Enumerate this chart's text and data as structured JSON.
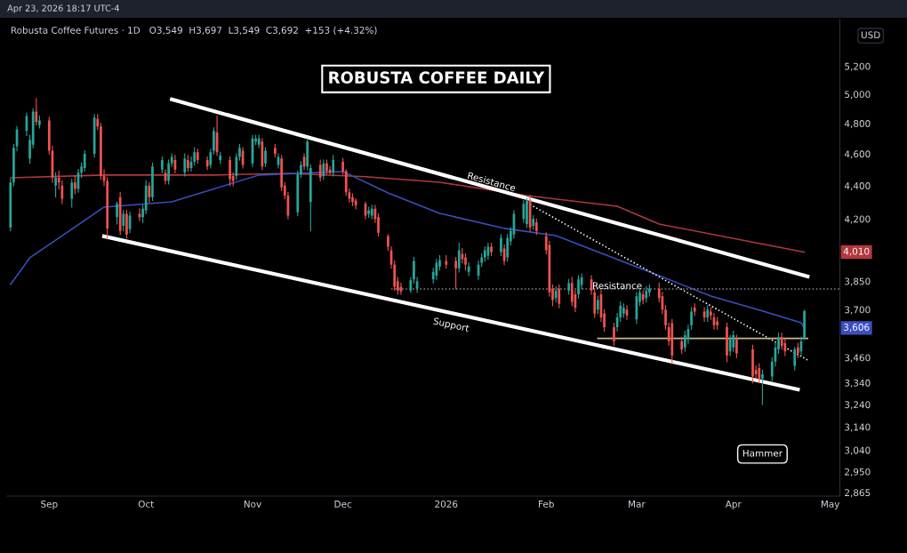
{
  "chart_data": {
    "type": "candlestick",
    "title": "ROBUSTA COFFEE DAILY",
    "subtitle": "Robusta Coffee Futures · 1D   O3,549  H3,697  L3,549  C3,692  +153 (+4.32%)",
    "ylabel": "USD",
    "x": [
      "2025-08-20",
      "2025-08-21",
      "2025-08-22",
      "2025-08-25",
      "2025-08-26",
      "2025-08-27",
      "2025-08-28",
      "2025-08-29",
      "2025-09-01",
      "2025-09-02",
      "2025-09-03",
      "2025-09-04",
      "2025-09-05",
      "2025-09-08",
      "2025-09-09",
      "2025-09-10",
      "2025-09-11",
      "2025-09-12",
      "2025-09-15",
      "2025-09-16",
      "2025-09-17",
      "2025-09-18",
      "2025-09-19",
      "2025-09-22",
      "2025-09-23",
      "2025-09-24",
      "2025-09-25",
      "2025-09-26",
      "2025-09-29",
      "2025-09-30",
      "2025-10-01",
      "2025-10-02",
      "2025-10-03",
      "2025-10-06",
      "2025-10-07",
      "2025-10-08",
      "2025-10-09",
      "2025-10-10",
      "2025-10-13",
      "2025-10-14",
      "2025-10-15",
      "2025-10-16",
      "2025-10-17",
      "2025-10-20",
      "2025-10-21",
      "2025-10-22",
      "2025-10-23",
      "2025-10-24",
      "2025-10-27",
      "2025-10-28",
      "2025-10-29",
      "2025-10-30",
      "2025-10-31",
      "2025-11-03",
      "2025-11-04",
      "2025-11-05",
      "2025-11-06",
      "2025-11-07",
      "2025-11-10",
      "2025-11-11",
      "2025-11-12",
      "2025-11-13",
      "2025-11-14",
      "2025-11-17",
      "2025-11-18",
      "2025-11-19",
      "2025-11-20",
      "2025-11-21",
      "2025-11-24",
      "2025-11-25",
      "2025-11-26",
      "2025-11-27",
      "2025-11-28",
      "2025-12-01",
      "2025-12-02",
      "2025-12-03",
      "2025-12-04",
      "2025-12-05",
      "2025-12-08",
      "2025-12-09",
      "2025-12-10",
      "2025-12-11",
      "2025-12-12",
      "2025-12-15",
      "2025-12-16",
      "2025-12-17",
      "2025-12-18",
      "2025-12-19",
      "2025-12-22",
      "2025-12-23",
      "2025-12-24",
      "2025-12-29",
      "2025-12-30",
      "2025-12-31",
      "2026-01-02",
      "2026-01-05",
      "2026-01-06",
      "2026-01-07",
      "2026-01-08",
      "2026-01-09",
      "2026-01-12",
      "2026-01-13",
      "2026-01-14",
      "2026-01-15",
      "2026-01-16",
      "2026-01-19",
      "2026-01-20",
      "2026-01-21",
      "2026-01-22",
      "2026-01-23",
      "2026-01-26",
      "2026-01-27",
      "2026-01-28",
      "2026-01-29",
      "2026-01-30",
      "2026-02-02",
      "2026-02-03",
      "2026-02-04",
      "2026-02-05",
      "2026-02-06",
      "2026-02-09",
      "2026-02-10",
      "2026-02-11",
      "2026-02-12",
      "2026-02-13",
      "2026-02-16",
      "2026-02-17",
      "2026-02-18",
      "2026-02-19",
      "2026-02-20",
      "2026-02-23",
      "2026-02-24",
      "2026-02-25",
      "2026-02-26",
      "2026-02-27",
      "2026-03-02",
      "2026-03-03",
      "2026-03-04",
      "2026-03-05",
      "2026-03-06",
      "2026-03-09",
      "2026-03-10",
      "2026-03-11",
      "2026-03-12",
      "2026-03-13",
      "2026-03-16",
      "2026-03-17",
      "2026-03-18",
      "2026-03-19",
      "2026-03-20",
      "2026-03-23",
      "2026-03-24",
      "2026-03-25",
      "2026-03-26",
      "2026-03-27",
      "2026-03-30",
      "2026-03-31",
      "2026-04-01",
      "2026-04-02",
      "2026-04-07",
      "2026-04-08",
      "2026-04-09",
      "2026-04-10",
      "2026-04-13",
      "2026-04-14",
      "2026-04-15",
      "2026-04-16",
      "2026-04-17",
      "2026-04-20",
      "2026-04-21",
      "2026-04-22",
      "2026-04-23"
    ],
    "ohlc": [
      [
        4150,
        4440,
        4130,
        4420
      ],
      [
        4420,
        4660,
        4400,
        4640
      ],
      [
        4650,
        4780,
        4620,
        4760
      ],
      [
        4750,
        4870,
        4720,
        4850
      ],
      [
        4570,
        4720,
        4540,
        4690
      ],
      [
        4660,
        4900,
        4640,
        4880
      ],
      [
        4880,
        4970,
        4790,
        4810
      ],
      [
        4790,
        4850,
        4770,
        4820
      ],
      [
        4820,
        4840,
        4600,
        4620
      ],
      [
        4620,
        4650,
        4420,
        4450
      ],
      [
        4400,
        4480,
        4330,
        4450
      ],
      [
        4450,
        4490,
        4380,
        4420
      ],
      [
        4400,
        4430,
        4290,
        4320
      ],
      [
        4320,
        4440,
        4270,
        4420
      ],
      [
        4420,
        4460,
        4350,
        4380
      ],
      [
        4380,
        4500,
        4360,
        4480
      ],
      [
        4480,
        4540,
        4450,
        4520
      ],
      [
        4510,
        4620,
        4490,
        4600
      ],
      [
        4600,
        4860,
        4580,
        4840
      ],
      [
        4830,
        4860,
        4760,
        4780
      ],
      [
        4780,
        4800,
        4440,
        4460
      ],
      [
        4460,
        4500,
        4400,
        4430
      ],
      [
        4430,
        4450,
        4090,
        4145
      ],
      [
        4210,
        4300,
        4170,
        4290
      ],
      [
        4330,
        4360,
        4110,
        4130
      ],
      [
        4160,
        4250,
        4130,
        4230
      ],
      [
        4230,
        4250,
        4090,
        4110
      ],
      [
        4140,
        4240,
        4120,
        4220
      ],
      [
        4230,
        4260,
        4190,
        4210
      ],
      [
        4210,
        4280,
        4180,
        4260
      ],
      [
        4250,
        4430,
        4230,
        4400
      ],
      [
        4400,
        4420,
        4300,
        4330
      ],
      [
        4330,
        4540,
        4310,
        4520
      ],
      [
        4500,
        4580,
        4480,
        4560
      ],
      [
        4480,
        4500,
        4410,
        4430
      ],
      [
        4430,
        4560,
        4410,
        4540
      ],
      [
        4540,
        4600,
        4520,
        4580
      ],
      [
        4560,
        4590,
        4480,
        4500
      ],
      [
        4480,
        4600,
        4460,
        4570
      ],
      [
        4560,
        4590,
        4490,
        4510
      ],
      [
        4510,
        4580,
        4490,
        4550
      ],
      [
        4550,
        4640,
        4530,
        4610
      ],
      [
        4610,
        4630,
        4540,
        4560
      ],
      [
        4560,
        4580,
        4500,
        4520
      ],
      [
        4530,
        4630,
        4510,
        4610
      ],
      [
        4620,
        4770,
        4600,
        4750
      ],
      [
        4740,
        4850,
        4590,
        4610
      ],
      [
        4560,
        4610,
        4540,
        4590
      ],
      [
        4560,
        4580,
        4400,
        4440
      ],
      [
        4460,
        4480,
        4400,
        4430
      ],
      [
        4460,
        4600,
        4440,
        4580
      ],
      [
        4580,
        4660,
        4560,
        4640
      ],
      [
        4620,
        4640,
        4510,
        4530
      ],
      [
        4540,
        4720,
        4520,
        4700
      ],
      [
        4680,
        4720,
        4660,
        4700
      ],
      [
        4660,
        4720,
        4640,
        4700
      ],
      [
        4680,
        4700,
        4500,
        4520
      ],
      [
        4540,
        4640,
        4520,
        4620
      ],
      [
        4640,
        4660,
        4580,
        4600
      ],
      [
        4530,
        4600,
        4510,
        4580
      ],
      [
        4570,
        4590,
        4370,
        4390
      ],
      [
        4400,
        4420,
        4320,
        4340
      ],
      [
        4340,
        4360,
        4200,
        4220
      ],
      [
        4240,
        4490,
        4220,
        4470
      ],
      [
        4470,
        4550,
        4450,
        4530
      ],
      [
        4580,
        4600,
        4500,
        4520
      ],
      [
        4520,
        4700,
        4500,
        4680
      ],
      [
        4300,
        4530,
        4130,
        4510
      ],
      [
        4530,
        4560,
        4430,
        4450
      ],
      [
        4460,
        4560,
        4440,
        4540
      ],
      [
        4540,
        4560,
        4470,
        4490
      ],
      [
        4500,
        4520,
        4470,
        4480
      ],
      [
        4480,
        4590,
        4460,
        4560
      ],
      [
        4550,
        4570,
        4470,
        4490
      ],
      [
        4490,
        4500,
        4340,
        4360
      ],
      [
        4360,
        4380,
        4300,
        4320
      ],
      [
        4330,
        4350,
        4280,
        4300
      ],
      [
        4310,
        4320,
        4260,
        4280
      ],
      [
        4290,
        4300,
        4200,
        4220
      ],
      [
        4230,
        4270,
        4210,
        4250
      ],
      [
        4220,
        4280,
        4200,
        4260
      ],
      [
        4260,
        4280,
        4180,
        4200
      ],
      [
        4210,
        4230,
        4100,
        4120
      ],
      [
        4100,
        4110,
        4020,
        4040
      ],
      [
        4020,
        4040,
        3920,
        3940
      ],
      [
        3940,
        3960,
        3800,
        3820
      ],
      [
        3850,
        3870,
        3780,
        3800
      ],
      [
        3820,
        3840,
        3780,
        3795
      ],
      [
        3800,
        3870,
        3790,
        3855
      ],
      [
        3860,
        3980,
        3840,
        3960
      ],
      [
        3810,
        3870,
        3790,
        3850
      ],
      [
        3860,
        3920,
        3840,
        3900
      ],
      [
        3880,
        3970,
        3860,
        3950
      ],
      [
        3930,
        3990,
        3910,
        3965
      ],
      [
        3960,
        3990,
        3920,
        3940
      ],
      [
        3960,
        3980,
        3810,
        3920
      ],
      [
        3920,
        4060,
        3900,
        4020
      ],
      [
        4000,
        4030,
        3950,
        3970
      ],
      [
        3980,
        4000,
        3910,
        3940
      ],
      [
        3900,
        3950,
        3880,
        3930
      ],
      [
        3880,
        3960,
        3860,
        3940
      ],
      [
        3950,
        4000,
        3930,
        3980
      ],
      [
        3980,
        4040,
        3960,
        4020
      ],
      [
        3990,
        4060,
        3970,
        4040
      ],
      [
        4040,
        4060,
        3990,
        4010
      ],
      [
        4010,
        4110,
        3990,
        4090
      ],
      [
        4030,
        4050,
        3940,
        3960
      ],
      [
        3980,
        4110,
        3960,
        4090
      ],
      [
        4070,
        4150,
        4050,
        4130
      ],
      [
        4110,
        4250,
        4090,
        4230
      ],
      [
        4200,
        4310,
        4180,
        4290
      ],
      [
        4170,
        4320,
        4150,
        4310
      ],
      [
        4310,
        4340,
        4130,
        4150
      ],
      [
        4160,
        4220,
        4140,
        4200
      ],
      [
        4180,
        4200,
        4110,
        4130
      ],
      [
        4100,
        4120,
        4000,
        4020
      ],
      [
        4050,
        4070,
        3770,
        3790
      ],
      [
        3810,
        3830,
        3720,
        3750
      ],
      [
        3760,
        3820,
        3740,
        3800
      ],
      [
        3810,
        3830,
        3710,
        3730
      ],
      [
        3800,
        3860,
        3780,
        3840
      ],
      [
        3840,
        3870,
        3720,
        3740
      ],
      [
        3780,
        3800,
        3690,
        3710
      ],
      [
        3780,
        3880,
        3760,
        3860
      ],
      [
        3830,
        3890,
        3810,
        3870
      ],
      [
        3860,
        3880,
        3780,
        3800
      ],
      [
        3790,
        3810,
        3660,
        3680
      ],
      [
        3700,
        3770,
        3680,
        3750
      ],
      [
        3780,
        3800,
        3640,
        3660
      ],
      [
        3680,
        3700,
        3590,
        3610
      ],
      [
        3610,
        3630,
        3520,
        3540
      ],
      [
        3610,
        3680,
        3590,
        3660
      ],
      [
        3660,
        3740,
        3640,
        3720
      ],
      [
        3680,
        3730,
        3660,
        3710
      ],
      [
        3700,
        3720,
        3650,
        3670
      ],
      [
        3650,
        3790,
        3630,
        3770
      ],
      [
        3740,
        3810,
        3720,
        3790
      ],
      [
        3780,
        3800,
        3730,
        3750
      ],
      [
        3760,
        3820,
        3740,
        3800
      ],
      [
        3790,
        3830,
        3770,
        3810
      ],
      [
        3810,
        3840,
        3740,
        3760
      ],
      [
        3770,
        3790,
        3680,
        3700
      ],
      [
        3700,
        3720,
        3600,
        3620
      ],
      [
        3610,
        3630,
        3520,
        3540
      ],
      [
        3630,
        3650,
        3430,
        3470
      ],
      [
        3540,
        3560,
        3480,
        3500
      ],
      [
        3510,
        3590,
        3490,
        3570
      ],
      [
        3550,
        3620,
        3530,
        3600
      ],
      [
        3620,
        3710,
        3600,
        3690
      ],
      [
        3710,
        3730,
        3670,
        3690
      ],
      [
        3690,
        3710,
        3640,
        3660
      ],
      [
        3660,
        3720,
        3640,
        3700
      ],
      [
        3690,
        3710,
        3650,
        3670
      ],
      [
        3660,
        3680,
        3600,
        3620
      ],
      [
        3640,
        3660,
        3600,
        3620
      ],
      [
        3610,
        3630,
        3440,
        3470
      ],
      [
        3490,
        3570,
        3470,
        3550
      ],
      [
        3510,
        3590,
        3490,
        3570
      ],
      [
        3550,
        3570,
        3460,
        3480
      ],
      [
        3500,
        3520,
        3340,
        3370
      ],
      [
        3400,
        3420,
        3360,
        3380
      ],
      [
        3410,
        3430,
        3340,
        3360
      ],
      [
        3360,
        3400,
        3240,
        3380
      ],
      [
        3370,
        3460,
        3350,
        3440
      ],
      [
        3440,
        3530,
        3420,
        3510
      ],
      [
        3500,
        3580,
        3480,
        3560
      ],
      [
        3560,
        3580,
        3500,
        3520
      ],
      [
        3530,
        3550,
        3470,
        3490
      ],
      [
        3420,
        3510,
        3400,
        3500
      ],
      [
        3510,
        3530,
        3460,
        3480
      ],
      [
        3490,
        3560,
        3470,
        3539
      ],
      [
        3549,
        3697,
        3549,
        3692
      ]
    ],
    "colors": [
      "#26a69a",
      "#26a69a",
      "#26a69a",
      "#26a69a",
      "#26a69a",
      "#26a69a",
      "#ef5350",
      "#26a69a",
      "#ef5350",
      "#ef5350",
      "#26a69a",
      "#ef5350",
      "#ef5350",
      "#26a69a",
      "#ef5350",
      "#26a69a",
      "#26a69a",
      "#26a69a",
      "#26a69a",
      "#ef5350",
      "#ef5350",
      "#ef5350",
      "#ef5350",
      "#26a69a",
      "#ef5350",
      "#26a69a",
      "#ef5350",
      "#26a69a",
      "#ef5350",
      "#26a69a",
      "#26a69a",
      "#ef5350",
      "#26a69a",
      "#26a69a",
      "#ef5350",
      "#26a69a",
      "#26a69a",
      "#ef5350",
      "#26a69a",
      "#ef5350",
      "#26a69a",
      "#26a69a",
      "#ef5350",
      "#ef5350",
      "#26a69a",
      "#26a69a",
      "#ef5350",
      "#26a69a",
      "#ef5350",
      "#ef5350",
      "#26a69a",
      "#26a69a",
      "#ef5350",
      "#26a69a",
      "#26a69a",
      "#26a69a",
      "#ef5350",
      "#26a69a",
      "#ef5350",
      "#26a69a",
      "#ef5350",
      "#ef5350",
      "#ef5350",
      "#26a69a",
      "#26a69a",
      "#ef5350",
      "#26a69a",
      "#26a69a",
      "#ef5350",
      "#26a69a",
      "#ef5350",
      "#ef5350",
      "#26a69a",
      "#ef5350",
      "#ef5350",
      "#ef5350",
      "#ef5350",
      "#ef5350",
      "#ef5350",
      "#26a69a",
      "#26a69a",
      "#ef5350",
      "#ef5350",
      "#ef5350",
      "#ef5350",
      "#ef5350",
      "#ef5350",
      "#ef5350",
      "#26a69a",
      "#26a69a",
      "#26a69a",
      "#26a69a",
      "#26a69a",
      "#26a69a",
      "#ef5350",
      "#ef5350",
      "#26a69a",
      "#ef5350",
      "#ef5350",
      "#26a69a",
      "#26a69a",
      "#26a69a",
      "#26a69a",
      "#26a69a",
      "#ef5350",
      "#26a69a",
      "#ef5350",
      "#26a69a",
      "#26a69a",
      "#26a69a",
      "#26a69a",
      "#26a69a",
      "#ef5350",
      "#26a69a",
      "#ef5350",
      "#ef5350",
      "#ef5350",
      "#ef5350",
      "#26a69a",
      "#ef5350",
      "#26a69a",
      "#ef5350",
      "#ef5350",
      "#26a69a",
      "#26a69a",
      "#ef5350",
      "#ef5350",
      "#26a69a",
      "#ef5350",
      "#ef5350",
      "#ef5350",
      "#26a69a",
      "#26a69a",
      "#26a69a",
      "#ef5350",
      "#26a69a",
      "#26a69a",
      "#ef5350",
      "#26a69a",
      "#26a69a",
      "#ef5350",
      "#ef5350",
      "#ef5350",
      "#ef5350",
      "#ef5350",
      "#ef5350",
      "#26a69a",
      "#26a69a",
      "#26a69a",
      "#ef5350",
      "#ef5350",
      "#26a69a",
      "#ef5350",
      "#ef5350",
      "#ef5350",
      "#ef5350",
      "#26a69a",
      "#26a69a",
      "#ef5350",
      "#ef5350",
      "#ef5350",
      "#ef5350",
      "#26a69a",
      "#26a69a",
      "#26a69a",
      "#26a69a",
      "#ef5350",
      "#ef5350",
      "#26a69a",
      "#ef5350",
      "#26a69a",
      "#26a69a"
    ],
    "series": [
      {
        "type": "line",
        "color": "#b2383b",
        "x": [
          "2025-08-20",
          "2025-09-18",
          "2025-10-22",
          "2025-11-14",
          "2025-12-08",
          "2025-12-31",
          "2026-01-27",
          "2026-02-24",
          "2026-03-09",
          "2026-04-23"
        ],
        "values": [
          4449,
          4466,
          4466,
          4477,
          4455,
          4421,
          4340,
          4275,
          4170,
          4010
        ]
      },
      {
        "type": "line",
        "color": "#3a4fbf",
        "x": [
          "2025-08-20",
          "2025-08-26",
          "2025-09-18",
          "2025-10-09",
          "2025-11-05",
          "2025-12-01",
          "2025-12-15",
          "2025-12-31",
          "2026-01-20",
          "2026-02-05",
          "2026-03-09",
          "2026-03-25",
          "2026-04-10",
          "2026-04-22",
          "2026-04-23"
        ],
        "values": [
          3832,
          3978,
          4270,
          4302,
          4466,
          4488,
          4356,
          4233,
          4145,
          4103,
          3880,
          3771,
          3693,
          3633,
          3606
        ]
      },
      {
        "type": "line",
        "color": "#ffffff",
        "line_style": "solid",
        "x": [
          "2025-10-09",
          "2026-04-24"
        ],
        "values": [
          4964,
          3876
        ]
      },
      {
        "type": "line",
        "color": "#ffffff",
        "line_style": "solid",
        "x": [
          "2025-09-18",
          "2026-04-21"
        ],
        "values": [
          4099,
          3309
        ]
      },
      {
        "type": "line",
        "color": "#ffffff",
        "line_style": "dotted",
        "x": [
          "2026-01-27",
          "2026-04-24"
        ],
        "values": [
          4297,
          3448
        ]
      },
      {
        "type": "line",
        "color": "#8a8a8a",
        "line_style": "dotted",
        "x": [
          "2025-12-16",
          "2026-05-04"
        ],
        "values": [
          3808,
          3808
        ]
      },
      {
        "type": "line",
        "color": "#c8b88a",
        "line_style": "solid",
        "x": [
          "2026-02-18",
          "2026-04-24"
        ],
        "values": [
          3554,
          3554
        ]
      }
    ],
    "annotations": [
      "Apr 23, 2026 18:17 UTC-4",
      {
        "text": "Resistance",
        "x": "2026-01-16",
        "y": 4420
      },
      "Support",
      {
        "text": "Resistance",
        "x": "2026-02-24",
        "y": 3822
      },
      "Hammer",
      "4,010",
      "3,606"
    ],
    "log": "y",
    "xlim": [
      "2025-08-19",
      "2026-05-04"
    ],
    "xticks": [
      {
        "value": "2025-09-01",
        "label": "Sep"
      },
      {
        "value": "2025-10-01",
        "label": "Oct"
      },
      {
        "value": "2025-11-03",
        "label": "Nov"
      },
      {
        "value": "2025-12-01",
        "label": "Dec"
      },
      {
        "value": "2026-01-02",
        "label": "2026"
      },
      {
        "value": "2026-02-02",
        "label": "Feb"
      },
      {
        "value": "2026-03-02",
        "label": "Mar"
      },
      {
        "value": "2026-04-01",
        "label": "Apr"
      },
      {
        "value": "2026-05-01",
        "label": "May"
      }
    ],
    "ylim": [
      2851,
      5552
    ],
    "yticks": [
      {
        "value": 5200,
        "label": "5,200"
      },
      {
        "value": 5000,
        "label": "5,000"
      },
      {
        "value": 4800,
        "label": "4,800"
      },
      {
        "value": 4600,
        "label": "4,600"
      },
      {
        "value": 4400,
        "label": "4,400"
      },
      {
        "value": 4200,
        "label": "4,200"
      },
      {
        "value": 3850,
        "label": "3,850"
      },
      {
        "value": 3700,
        "label": "3,700"
      },
      {
        "value": 3460,
        "label": "3,460"
      },
      {
        "value": 3340,
        "label": "3,340"
      },
      {
        "value": 3240,
        "label": "3,240"
      },
      {
        "value": 3140,
        "label": "3,140"
      },
      {
        "value": 3040,
        "label": "3,040"
      },
      {
        "value": 2950,
        "label": "2,950"
      },
      {
        "value": 2865,
        "label": "2,865"
      }
    ]
  }
}
